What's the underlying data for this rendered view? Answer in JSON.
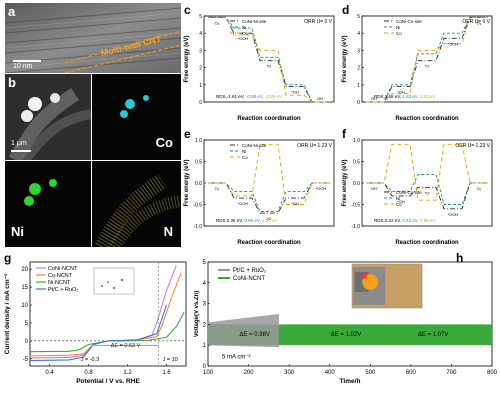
{
  "panels": {
    "a": {
      "letter": "a",
      "scalebar": "10 nm",
      "annotation": "Multi-wall CNT"
    },
    "b": {
      "letter": "b",
      "scalebar": "1 μm",
      "maps": [
        "Co",
        "Ni",
        "N"
      ]
    },
    "c": {
      "letter": "c",
      "header": "ORR U= 0 V",
      "legend": [
        "CoNi-Ni-site",
        "Ni",
        "Co"
      ],
      "ylabel": "Free energy (eV)",
      "xlabel": "Reaction coordination",
      "rds_prefix": "RDS,-1.61 eV, ",
      "rds_ni": "-0.90 eV, ",
      "rds_co": "-0.35 eV",
      "states": [
        "O₂",
        "*OOH",
        "*O",
        "*OH",
        "OH⁻"
      ],
      "yticks": [
        "0",
        "1",
        "2",
        "3",
        "4",
        "5"
      ]
    },
    "d": {
      "letter": "d",
      "header": "OER U= 0 V",
      "legend": [
        "CoNi-Co-site",
        "Ni",
        "Co"
      ],
      "ylabel": "Free energy (eV)",
      "xlabel": "Reaction coordination",
      "rds_prefix": "RDS,1.58 eV, ",
      "rds_ni": "1.83 eV, ",
      "rds_co": "2.43 eV",
      "states": [
        "OH⁻",
        "*OH",
        "*O",
        "*OOH",
        "O₂"
      ],
      "yticks": [
        "0",
        "1",
        "2",
        "3",
        "4",
        "5"
      ]
    },
    "e": {
      "letter": "e",
      "header": "ORR U= 1.23 V",
      "legend": [
        "CoNi-Ni-site",
        "Ni",
        "Co"
      ],
      "ylabel": "Free energy (eV)",
      "xlabel": "Reaction coordination",
      "rds_prefix": "RDS,0.35 eV, ",
      "rds_ni": "0.66 eV, ",
      "rds_co": "1.20 eV",
      "states": [
        "O₂",
        "*OOH",
        "*O",
        "*OH",
        "*OOH"
      ],
      "yticks": [
        "-1.0",
        "-0.5",
        "0.0",
        "0.5",
        "1.0"
      ]
    },
    "f": {
      "letter": "f",
      "header": "OER U= 1.23 V",
      "legend": [
        "CoNi-Co-site",
        "Ni",
        "Co"
      ],
      "ylabel": "Free energy (eV)",
      "xlabel": "Reaction coordination",
      "rds_prefix": "RDS,0.22 eV, ",
      "rds_ni": "0.43 eV, ",
      "rds_co": "0.95 eV",
      "states": [
        "OH⁻",
        "*OH",
        "*O",
        "*OOH",
        "O₂"
      ],
      "yticks": [
        "-1.0",
        "-0.5",
        "0.0",
        "0.5",
        "1.0"
      ]
    },
    "g": {
      "letter": "g",
      "ylabel": "Current density / mA cm⁻²",
      "xlabel": "Potential / V vs. RHE",
      "legend": [
        "CoNi-NCNT",
        "Co-NCNT",
        "Ni-NCNT",
        "Pt/C + RuO₂"
      ],
      "delta": "ΔE = 0.63 V",
      "j_left": "J = -0.3",
      "j_right": "J = 10",
      "xticks": [
        "0.4",
        "0.8",
        "1.2",
        "1.6"
      ],
      "yticks": [
        "-5",
        "0",
        "5",
        "10",
        "15",
        "20"
      ]
    },
    "h": {
      "letter": "h",
      "ylabel": "Voltage(V vs.Zn)",
      "xlabel": "Time/h",
      "legend": [
        "Pt/C + RuO₂",
        "CoNi-NCNT"
      ],
      "dE": [
        "ΔE = 0.98V",
        "ΔE = 1.02V",
        "ΔE = 1.07V"
      ],
      "current": "5 mA cm⁻²",
      "xticks": [
        "100",
        "200",
        "300",
        "400",
        "500",
        "600",
        "700",
        "800"
      ],
      "yticks": [
        "0",
        "1",
        "2",
        "3",
        "4",
        "5"
      ]
    }
  },
  "colors": {
    "coni": "#2b2b2b",
    "ni": "#1f8a8a",
    "co": "#e0a000",
    "g_coni": "#c77ddb",
    "g_co": "#f08a3c",
    "g_ni": "#3aaa3a",
    "g_pt": "#3a78d8",
    "h_coni": "#3aaa3a",
    "h_pt": "#999999"
  },
  "chart_data": [
    {
      "type": "line",
      "panel": "c",
      "x": [
        "O₂",
        "*OOH",
        "*O",
        "*OH",
        "OH⁻"
      ],
      "series": [
        {
          "name": "CoNi-Ni-site",
          "values": [
            4.92,
            4.0,
            2.4,
            0.9,
            0
          ]
        },
        {
          "name": "Ni",
          "values": [
            4.92,
            4.3,
            2.6,
            1.0,
            0
          ]
        },
        {
          "name": "Co",
          "values": [
            4.92,
            3.9,
            3.0,
            0.4,
            0
          ]
        }
      ],
      "ylim": [
        0,
        5
      ]
    },
    {
      "type": "line",
      "panel": "d",
      "x": [
        "OH⁻",
        "*OH",
        "*O",
        "*OOH",
        "O₂"
      ],
      "series": [
        {
          "name": "CoNi-Co-site",
          "values": [
            0,
            0.9,
            2.4,
            3.7,
            4.92
          ]
        },
        {
          "name": "Ni",
          "values": [
            0,
            1.0,
            2.8,
            4.0,
            4.92
          ]
        },
        {
          "name": "Co",
          "values": [
            0,
            0.5,
            3.0,
            3.4,
            4.92
          ]
        }
      ],
      "ylim": [
        0,
        5
      ]
    },
    {
      "type": "line",
      "panel": "e",
      "x": [
        "O₂",
        "*OOH",
        "*O",
        "*OH",
        "*OOH"
      ],
      "series": [
        {
          "name": "CoNi-Ni-site",
          "values": [
            0,
            -0.35,
            -0.7,
            -0.35,
            0
          ]
        },
        {
          "name": "Ni",
          "values": [
            0,
            -0.2,
            -0.66,
            -0.2,
            0
          ]
        },
        {
          "name": "Co",
          "values": [
            0,
            -0.3,
            0.9,
            -0.5,
            0
          ]
        }
      ],
      "ylim": [
        -1.0,
        1.0
      ]
    },
    {
      "type": "line",
      "panel": "f",
      "x": [
        "OH⁻",
        "*OH",
        "*O",
        "*OOH",
        "O₂"
      ],
      "series": [
        {
          "name": "CoNi-Co-site",
          "values": [
            0,
            -0.3,
            -0.1,
            -0.6,
            0
          ]
        },
        {
          "name": "Ni",
          "values": [
            0,
            -0.2,
            0.2,
            -0.5,
            0
          ]
        },
        {
          "name": "Co",
          "values": [
            0,
            0.9,
            -0.4,
            0.9,
            0
          ]
        }
      ],
      "ylim": [
        -1.0,
        1.0
      ]
    },
    {
      "type": "line",
      "panel": "g",
      "xlabel": "Potential / V vs. RHE",
      "ylabel": "Current density / mA cm⁻²",
      "xlim": [
        0.2,
        1.8
      ],
      "ylim": [
        -7,
        22
      ],
      "series": [
        {
          "name": "CoNi-NCNT",
          "x": [
            0.2,
            0.6,
            0.75,
            0.85,
            1.0,
            1.3,
            1.45,
            1.5,
            1.6,
            1.7
          ],
          "y": [
            -4.8,
            -4.6,
            -4.0,
            -1.0,
            0,
            0.2,
            1.5,
            5,
            14,
            21
          ]
        },
        {
          "name": "Co-NCNT",
          "x": [
            0.2,
            0.6,
            0.75,
            0.85,
            1.0,
            1.3,
            1.5,
            1.55,
            1.65,
            1.75
          ],
          "y": [
            -4.2,
            -4.0,
            -3.6,
            -1.0,
            0,
            0.2,
            1.2,
            4,
            12,
            19
          ]
        },
        {
          "name": "Ni-NCNT",
          "x": [
            0.2,
            0.6,
            0.7,
            0.8,
            1.0,
            1.4,
            1.6,
            1.7,
            1.78
          ],
          "y": [
            -3.0,
            -2.9,
            -2.5,
            -1.0,
            0,
            0.1,
            1.0,
            4,
            8
          ]
        },
        {
          "name": "Pt/C + RuO₂",
          "x": [
            0.2,
            0.6,
            0.75,
            0.85,
            1.0,
            1.3,
            1.5,
            1.55,
            1.6
          ],
          "y": [
            -5.5,
            -5.3,
            -4.5,
            -1.0,
            0,
            0.3,
            2.0,
            6,
            10
          ]
        }
      ]
    },
    {
      "type": "line",
      "panel": "h",
      "xlabel": "Time/h",
      "ylabel": "Voltage(V vs.Zn)",
      "xlim": [
        100,
        800
      ],
      "ylim": [
        0,
        5
      ],
      "series": [
        {
          "name": "CoNi-NCNT",
          "band": [
            1.0,
            2.0
          ],
          "x": [
            100,
            800
          ]
        },
        {
          "name": "Pt/C + RuO₂",
          "band": [
            0.9,
            2.5
          ],
          "x": [
            100,
            275
          ]
        }
      ]
    }
  ]
}
